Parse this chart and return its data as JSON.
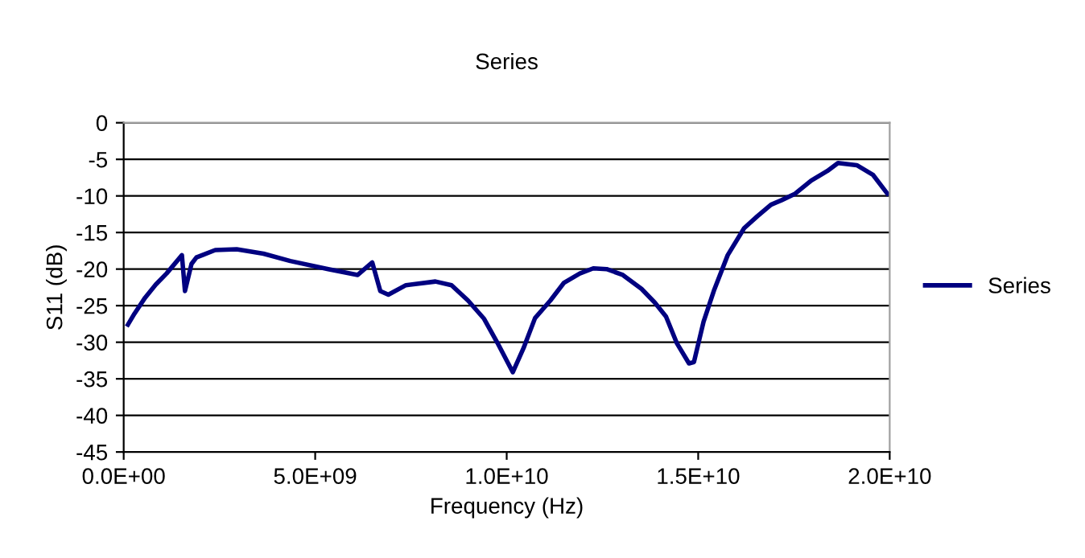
{
  "chart_data": {
    "type": "line",
    "title": "Series",
    "xlabel": "Frequency (Hz)",
    "ylabel": "S11 (dB)",
    "series": [
      {
        "name": "Series",
        "color": "#000080",
        "x": [
          110000000.0,
          280000000.0,
          560000000.0,
          840000000.0,
          1120000000.0,
          1520000000.0,
          1600000000.0,
          1770000000.0,
          1900000000.0,
          2390000000.0,
          2950000000.0,
          3650000000.0,
          4350000000.0,
          5340000000.0,
          6110000000.0,
          6490000000.0,
          6700000000.0,
          6910000000.0,
          7370000000.0,
          8140000000.0,
          8560000000.0,
          8990000000.0,
          9410000000.0,
          9760000000.0,
          10160000000.0,
          10440000000.0,
          10740000000.0,
          11140000000.0,
          11490000000.0,
          11910000000.0,
          12260000000.0,
          12610000000.0,
          13030000000.0,
          13520000000.0,
          13870000000.0,
          14160000000.0,
          14440000000.0,
          14760000000.0,
          14890000000.0,
          15140000000.0,
          15420000000.0,
          15770000000.0,
          16200000000.0,
          16540000000.0,
          16900000000.0,
          17170000000.0,
          17530000000.0,
          17950000000.0,
          18370000000.0,
          18650000000.0,
          19140000000.0,
          19560000000.0,
          19940000000.0
        ],
        "values": [
          -27.6,
          -26.1,
          -23.9,
          -22.1,
          -20.6,
          -18.1,
          -23.0,
          -19.3,
          -18.4,
          -17.4,
          -17.3,
          -17.9,
          -18.9,
          -20.0,
          -20.8,
          -19.1,
          -23.0,
          -23.5,
          -22.2,
          -21.7,
          -22.2,
          -24.3,
          -26.8,
          -30.1,
          -34.1,
          -30.8,
          -26.7,
          -24.3,
          -21.9,
          -20.6,
          -19.9,
          -20.0,
          -20.8,
          -22.7,
          -24.6,
          -26.5,
          -30.1,
          -32.9,
          -32.7,
          -27.2,
          -22.8,
          -18.1,
          -14.4,
          -12.8,
          -11.2,
          -10.6,
          -9.7,
          -7.9,
          -6.6,
          -5.5,
          -5.8,
          -7.1,
          -9.7
        ]
      }
    ],
    "xlim": [
      0,
      20000000000.0
    ],
    "xticks": [
      {
        "value": 0,
        "label": "0.0E+00"
      },
      {
        "value": 5000000000.0,
        "label": "5.0E+09"
      },
      {
        "value": 10000000000.0,
        "label": "1.0E+10"
      },
      {
        "value": 15000000000.0,
        "label": "1.5E+10"
      },
      {
        "value": 20000000000.0,
        "label": "2.0E+10"
      }
    ],
    "ylim": [
      -45,
      0
    ],
    "yticks": [
      -45,
      -40,
      -35,
      -30,
      -25,
      -20,
      -15,
      -10,
      -5,
      0
    ],
    "grid": "y",
    "legend": "right",
    "marker": "none",
    "line_style": "solid"
  }
}
